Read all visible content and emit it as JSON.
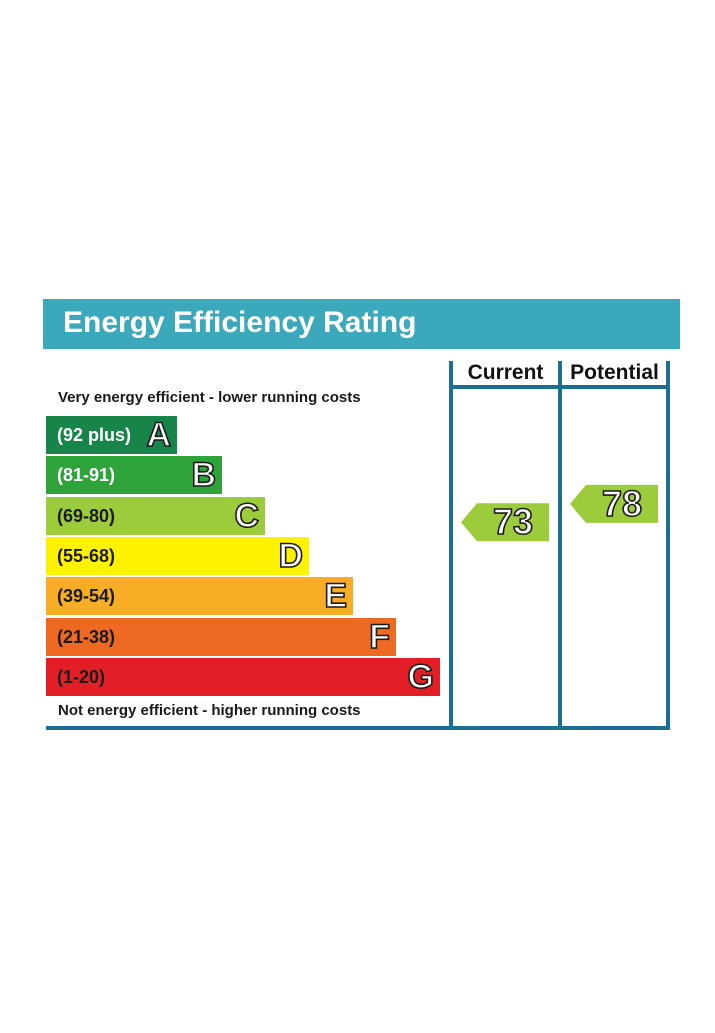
{
  "title": "Energy Efficiency Rating",
  "caption_top": "Very energy efficient - lower running costs",
  "caption_bottom": "Not energy efficient - higher running costs",
  "columns": {
    "current": "Current",
    "potential": "Potential"
  },
  "chart_data": {
    "type": "bar",
    "title": "Energy Efficiency Rating",
    "categories": [
      "A",
      "B",
      "C",
      "D",
      "E",
      "F",
      "G"
    ],
    "bands": [
      {
        "letter": "A",
        "range": "(92 plus)",
        "color": "#17854a",
        "text_color": "#ffffff"
      },
      {
        "letter": "B",
        "range": "(81-91)",
        "color": "#2da33a",
        "text_color": "#ffffff"
      },
      {
        "letter": "C",
        "range": "(69-80)",
        "color": "#9ccb3b",
        "text_color": "#1a1a1a"
      },
      {
        "letter": "D",
        "range": "(55-68)",
        "color": "#fff200",
        "text_color": "#1a1a1a"
      },
      {
        "letter": "E",
        "range": "(39-54)",
        "color": "#f7ad25",
        "text_color": "#1a1a1a"
      },
      {
        "letter": "F",
        "range": "(21-38)",
        "color": "#ee6a23",
        "text_color": "#1a1a1a"
      },
      {
        "letter": "G",
        "range": "(1-20)",
        "color": "#e21f26",
        "text_color": "#1a1a1a"
      }
    ],
    "current": {
      "value": 73,
      "band": "C",
      "color": "#9ccb3b"
    },
    "potential": {
      "value": 78,
      "band": "C",
      "color": "#9ccb3b"
    }
  },
  "colors": {
    "accent": "#3ba8bb",
    "frame": "#1c6f93"
  }
}
